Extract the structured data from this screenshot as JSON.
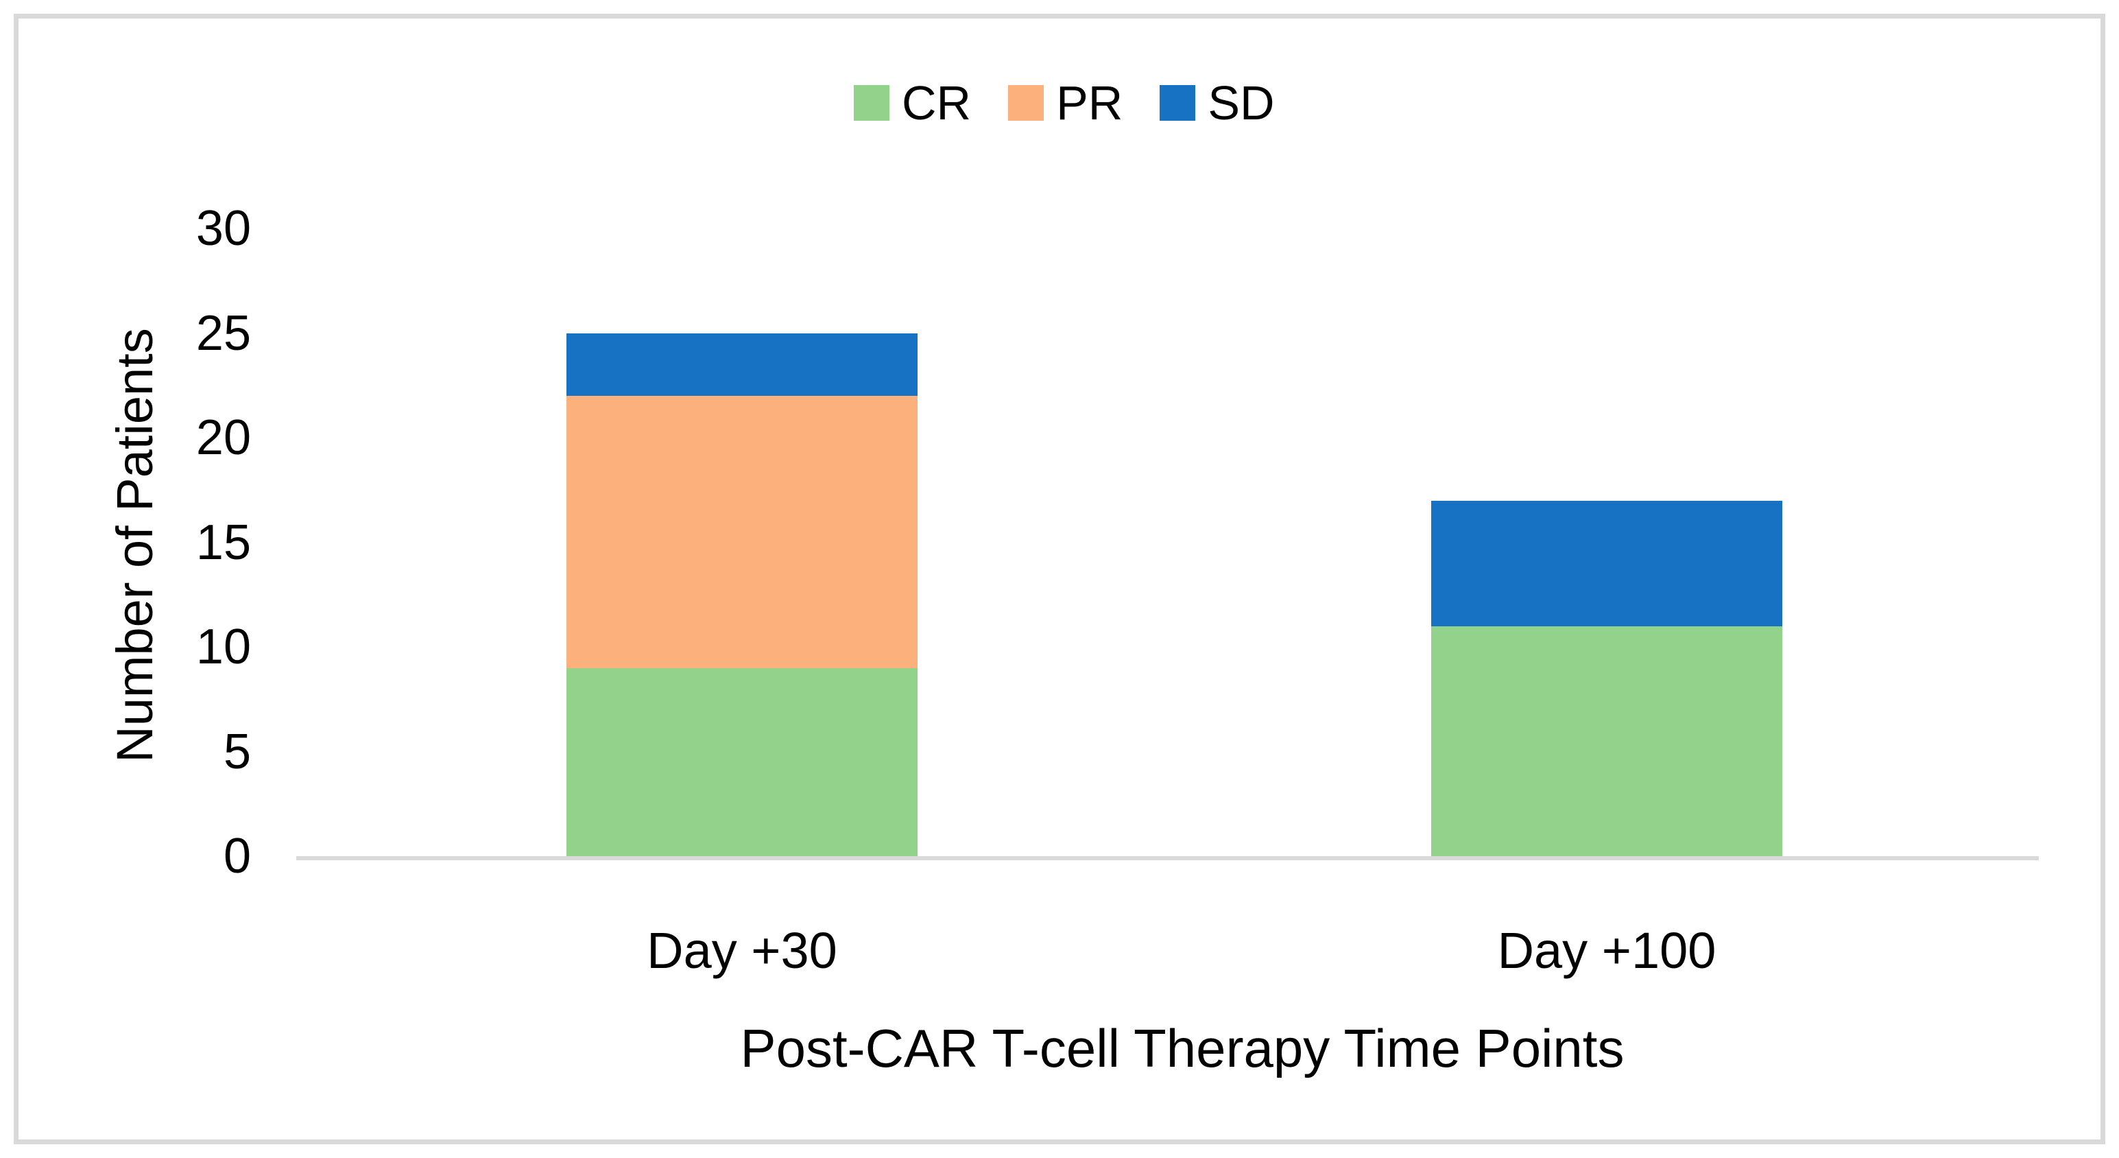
{
  "chart_data": {
    "type": "bar",
    "stacked": true,
    "title": "",
    "categories": [
      "Day +30",
      "Day +100"
    ],
    "series": [
      {
        "name": "CR",
        "color": "#93D28A",
        "values": [
          9,
          11
        ]
      },
      {
        "name": "PR",
        "color": "#FCB17C",
        "values": [
          13,
          0
        ]
      },
      {
        "name": "SD",
        "color": "#1772C4",
        "values": [
          3,
          6
        ]
      }
    ],
    "xlabel": "Post-CAR T-cell Therapy Time Points",
    "ylabel": "Number of Patients",
    "ylim": [
      0,
      30
    ],
    "yticks": [
      0,
      5,
      10,
      15,
      20,
      25,
      30
    ],
    "grid": false,
    "legend_position": "top-center",
    "colors": {
      "background": "#FFFFFF",
      "frame_border": "#D9D9D9",
      "axis_line": "#D9D9D9",
      "text": "#000000"
    }
  }
}
